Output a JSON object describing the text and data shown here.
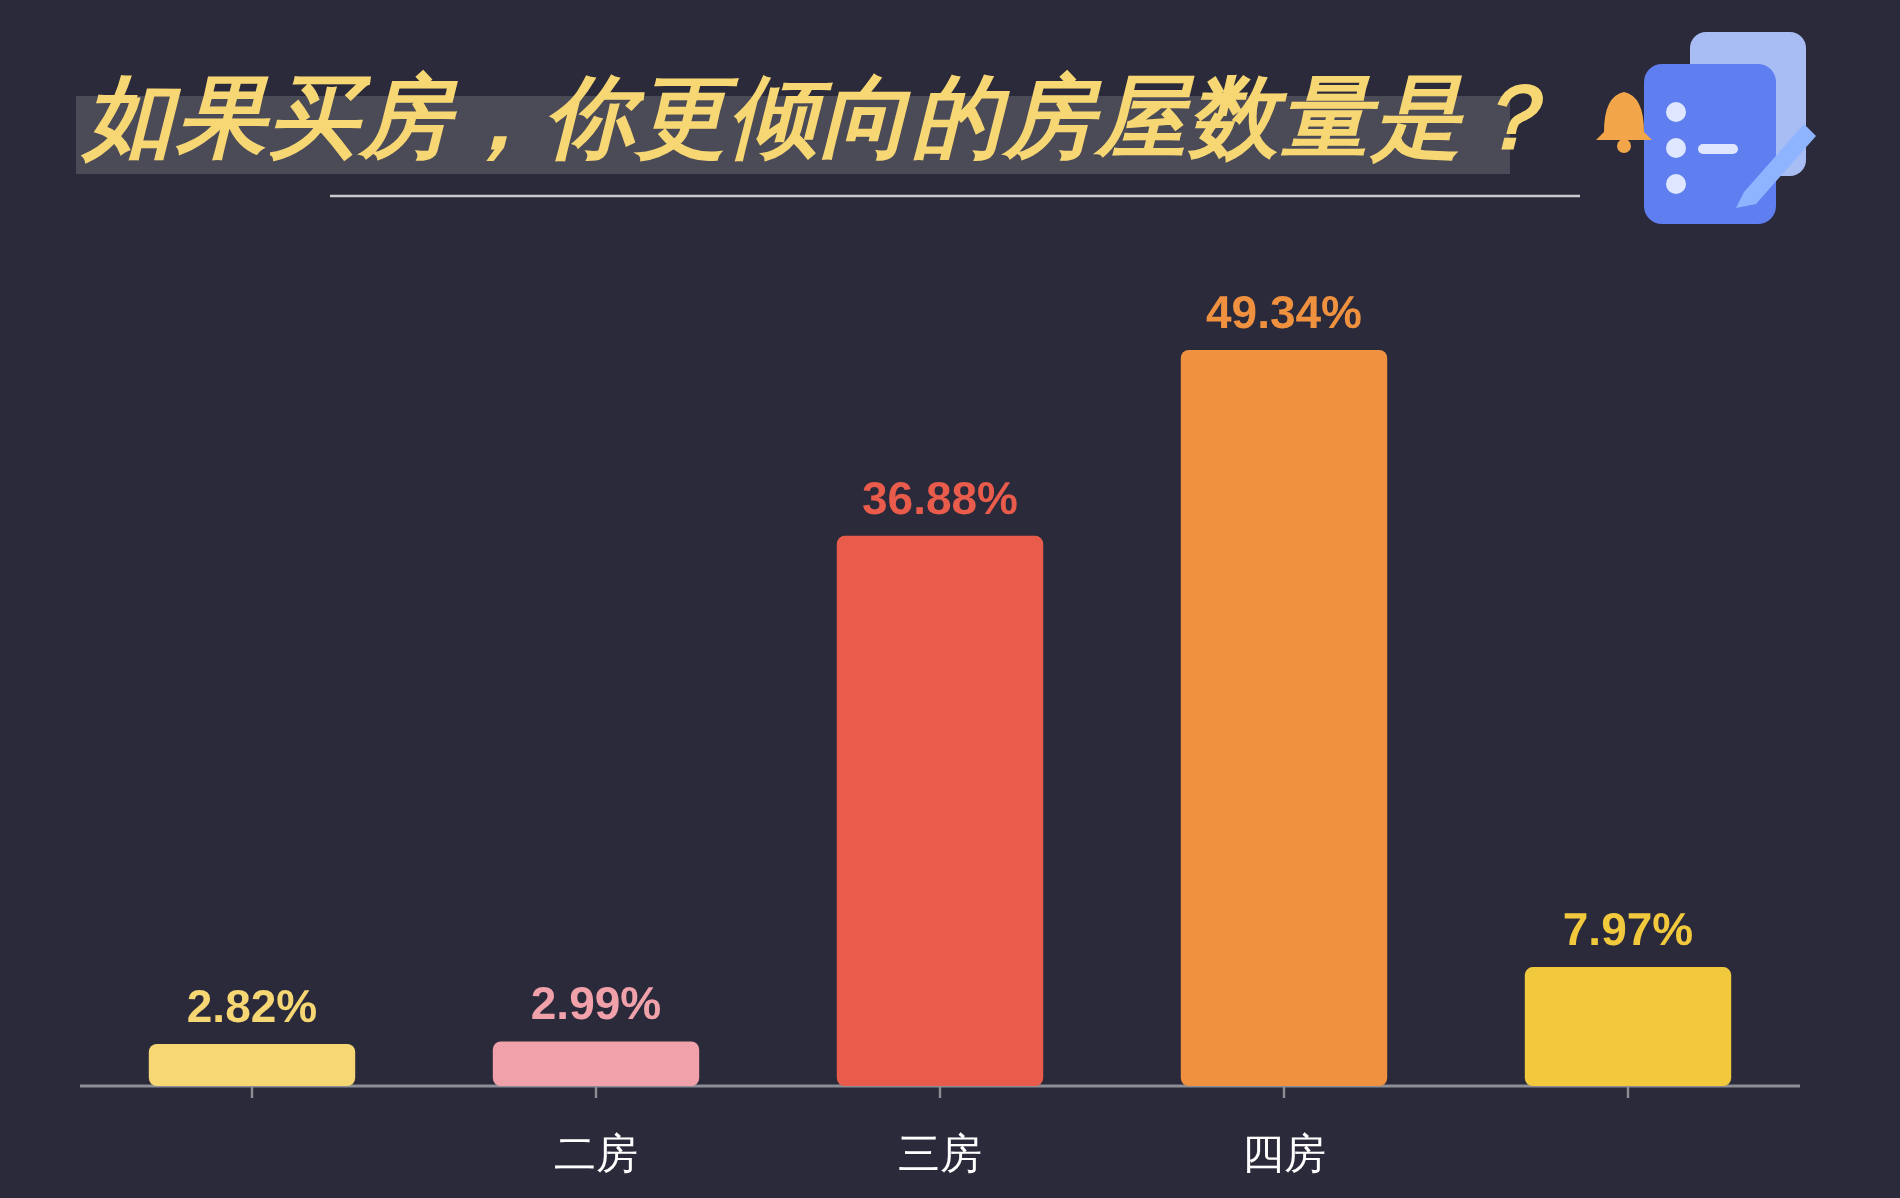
{
  "chart_data": {
    "type": "bar",
    "title": "如果买房，你更倾向的房屋数量是？",
    "categories": [
      null,
      "二房",
      "三房",
      "四房",
      null
    ],
    "values": [
      2.82,
      2.99,
      36.88,
      49.34,
      7.97
    ],
    "colors": [
      "#f7d774",
      "#f0a1aa",
      "#e95b4b",
      "#f0913f",
      "#f2c83c"
    ],
    "value_labels": [
      "2.82%",
      "2.99%",
      "36.88%",
      "49.34%",
      "7.97%"
    ]
  }
}
